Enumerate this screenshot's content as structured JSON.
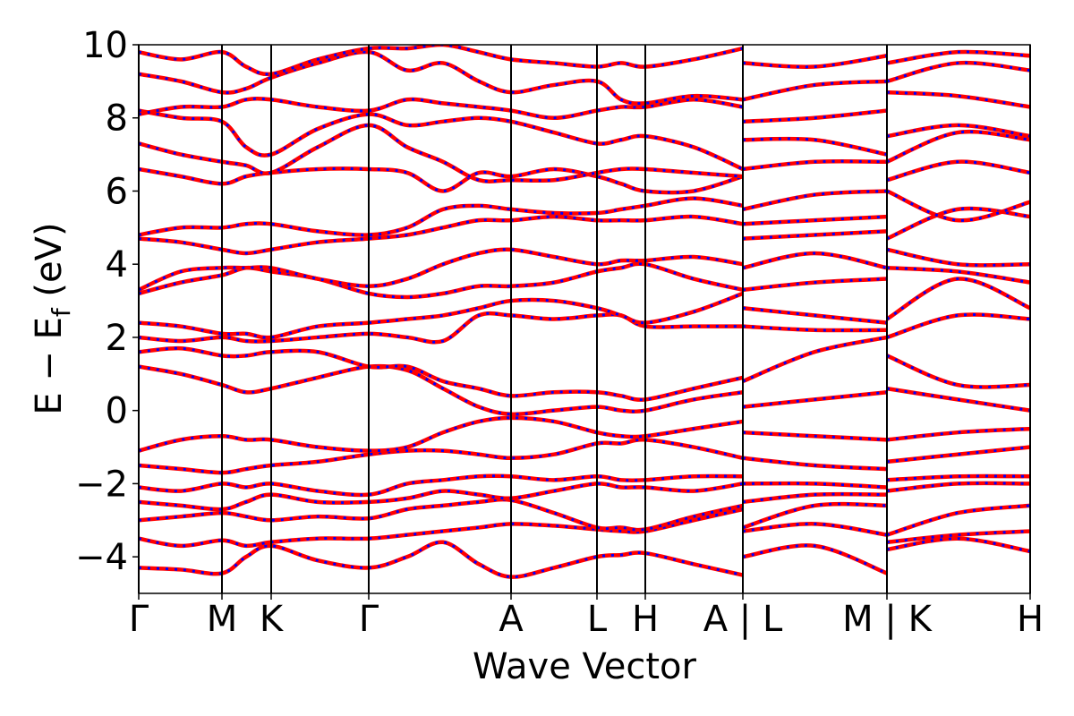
{
  "chart_data": {
    "type": "band-structure",
    "xlabel": "Wave Vector",
    "ylabel": {
      "text": "E − E",
      "subscript": "f",
      "suffix": " (eV)"
    },
    "xlim": [
      0,
      9.96
    ],
    "ylim": [
      -5,
      10
    ],
    "yticks": [
      {
        "value": -4,
        "label": "−4"
      },
      {
        "value": -2,
        "label": "−2"
      },
      0,
      2,
      4,
      6,
      8,
      10
    ],
    "xticks": [
      {
        "value": 0,
        "label": "Γ"
      },
      {
        "value": 0.93,
        "label": "M"
      },
      {
        "value": 1.48,
        "label": "K"
      },
      {
        "value": 2.57,
        "label": "Γ"
      },
      {
        "value": 4.16,
        "label": "A"
      },
      {
        "value": 5.12,
        "label": "L"
      },
      {
        "value": 5.66,
        "label": "H"
      },
      {
        "value": 6.75,
        "label": "A | L"
      },
      {
        "value": 8.36,
        "label": "M | K"
      },
      {
        "value": 9.96,
        "label": "H"
      }
    ],
    "vlines": true,
    "color": "#ff0000",
    "dash_color": "#0000ff",
    "x": [
      0,
      0.47,
      0.93,
      1.2,
      1.48,
      2.0,
      2.57,
      3.0,
      3.4,
      3.8,
      4.16,
      4.64,
      5.12,
      5.39,
      5.66,
      6.2,
      6.75,
      6.75,
      6.75,
      7.55,
      8.36,
      8.36,
      8.36,
      9.15,
      9.96
    ],
    "series": [
      {
        "values": [
          -4.3,
          -4.35,
          -4.45,
          -4.0,
          -3.7,
          -4.1,
          -4.3,
          -4.0,
          -3.6,
          -4.2,
          -4.55,
          -4.3,
          -4.0,
          -3.95,
          -3.9,
          -4.2,
          -4.5,
          null,
          -4.0,
          -3.7,
          -4.45,
          null,
          -3.8,
          -3.5,
          -3.85
        ]
      },
      {
        "values": [
          -3.5,
          -3.7,
          -3.55,
          -3.7,
          -3.6,
          -3.5,
          -3.5,
          -3.4,
          -3.3,
          -3.2,
          -3.1,
          -3.15,
          -3.25,
          -3.3,
          -3.3,
          -3.0,
          -2.7,
          null,
          -3.3,
          -3.1,
          -3.4,
          null,
          -3.6,
          -3.4,
          -3.3
        ]
      },
      {
        "values": [
          -3.0,
          -2.9,
          -2.8,
          -2.9,
          -3.0,
          -2.9,
          -2.95,
          -2.7,
          -2.6,
          -2.5,
          -2.45,
          -2.8,
          -3.2,
          -3.2,
          -3.25,
          -2.9,
          -2.6,
          null,
          -3.2,
          -2.6,
          -2.6,
          null,
          -3.4,
          -2.8,
          -2.6
        ]
      },
      {
        "values": [
          -2.5,
          -2.6,
          -2.7,
          -2.5,
          -2.3,
          -2.5,
          -2.5,
          -2.4,
          -2.2,
          -2.3,
          -2.4,
          -2.2,
          -2.0,
          -2.1,
          -2.1,
          -2.2,
          -2.0,
          null,
          -2.5,
          -2.3,
          -2.3,
          null,
          -2.2,
          -2.0,
          -2.0
        ]
      },
      {
        "values": [
          -2.1,
          -2.2,
          -2.0,
          -2.1,
          -2.0,
          -2.2,
          -2.3,
          -2.0,
          -1.9,
          -1.8,
          -1.8,
          -1.9,
          -1.8,
          -1.9,
          -1.9,
          -1.8,
          -1.8,
          null,
          -2.0,
          -2.0,
          -2.1,
          null,
          -1.9,
          -1.8,
          -1.8
        ]
      },
      {
        "values": [
          -1.5,
          -1.6,
          -1.7,
          -1.6,
          -1.5,
          -1.4,
          -1.2,
          -1.1,
          -1.1,
          -1.2,
          -1.3,
          -1.2,
          -0.9,
          -0.9,
          -0.8,
          -1.0,
          -1.3,
          null,
          -1.3,
          -1.5,
          -1.6,
          null,
          -1.4,
          -1.2,
          -1.0
        ]
      },
      {
        "values": [
          -1.1,
          -0.8,
          -0.7,
          -0.8,
          -0.8,
          -1.0,
          -1.1,
          -1.0,
          -0.6,
          -0.3,
          -0.2,
          -0.3,
          -0.6,
          -0.7,
          -0.7,
          -0.5,
          -0.3,
          null,
          -0.6,
          -0.7,
          -0.8,
          null,
          -0.8,
          -0.6,
          -0.5
        ]
      },
      {
        "values": [
          1.2,
          1.0,
          0.7,
          0.5,
          0.6,
          0.9,
          1.2,
          1.1,
          0.6,
          0.1,
          -0.1,
          0.0,
          0.1,
          0.0,
          0.0,
          0.3,
          0.5,
          null,
          0.1,
          0.3,
          0.5,
          null,
          0.6,
          0.3,
          0.0
        ]
      },
      {
        "values": [
          1.6,
          1.7,
          1.5,
          1.5,
          1.6,
          1.6,
          1.2,
          1.2,
          0.8,
          0.6,
          0.4,
          0.5,
          0.5,
          0.4,
          0.3,
          0.6,
          0.9,
          null,
          0.8,
          1.6,
          2.0,
          null,
          1.5,
          0.7,
          0.7
        ]
      },
      {
        "values": [
          2.0,
          1.9,
          2.0,
          1.9,
          1.9,
          2.0,
          2.1,
          2.0,
          1.9,
          2.6,
          2.6,
          2.5,
          2.6,
          2.6,
          2.3,
          2.3,
          2.3,
          null,
          2.3,
          2.2,
          2.2,
          null,
          2.0,
          2.6,
          2.5
        ]
      },
      {
        "values": [
          2.4,
          2.3,
          2.1,
          2.1,
          2.0,
          2.3,
          2.4,
          2.5,
          2.6,
          2.8,
          3.0,
          3.0,
          2.8,
          2.6,
          2.4,
          2.7,
          3.2,
          null,
          2.8,
          2.6,
          2.4,
          null,
          2.5,
          3.6,
          2.8
        ]
      },
      {
        "values": [
          3.2,
          3.5,
          3.7,
          3.9,
          3.8,
          3.6,
          3.2,
          3.1,
          3.2,
          3.4,
          3.4,
          3.5,
          3.8,
          3.9,
          4.0,
          3.6,
          3.3,
          null,
          3.3,
          3.5,
          3.6,
          null,
          3.9,
          3.8,
          3.5
        ]
      },
      {
        "values": [
          3.3,
          3.8,
          3.9,
          3.9,
          3.9,
          3.6,
          3.4,
          3.6,
          4.0,
          4.3,
          4.4,
          4.2,
          4.0,
          4.1,
          4.1,
          4.2,
          4.0,
          null,
          3.9,
          4.3,
          3.9,
          null,
          4.4,
          4.0,
          4.0
        ]
      },
      {
        "values": [
          4.7,
          4.6,
          4.4,
          4.3,
          4.4,
          4.6,
          4.7,
          4.8,
          5.0,
          5.2,
          5.2,
          5.3,
          5.2,
          5.2,
          5.2,
          5.3,
          5.1,
          null,
          4.7,
          4.8,
          4.9,
          null,
          4.7,
          5.5,
          5.3
        ]
      },
      {
        "values": [
          4.8,
          5.0,
          5.0,
          5.1,
          5.1,
          4.9,
          4.8,
          5.0,
          5.5,
          5.6,
          5.5,
          5.4,
          5.4,
          5.5,
          5.6,
          5.8,
          5.6,
          null,
          5.1,
          5.2,
          5.3,
          null,
          6.0,
          5.2,
          5.7
        ]
      },
      {
        "values": [
          6.6,
          6.4,
          6.2,
          6.4,
          6.5,
          6.6,
          6.6,
          6.5,
          6.0,
          6.5,
          6.4,
          6.6,
          6.4,
          6.2,
          6.0,
          6.0,
          6.4,
          null,
          5.5,
          5.9,
          6.0,
          null,
          6.3,
          6.8,
          6.5
        ]
      },
      {
        "values": [
          7.3,
          7.0,
          6.8,
          6.7,
          6.5,
          7.2,
          7.8,
          7.2,
          6.8,
          6.3,
          6.3,
          6.3,
          6.5,
          6.6,
          6.6,
          6.5,
          6.4,
          null,
          6.6,
          6.8,
          6.8,
          null,
          6.8,
          7.6,
          7.4
        ]
      },
      {
        "values": [
          8.2,
          8.0,
          7.9,
          7.2,
          7.0,
          7.7,
          8.1,
          7.8,
          7.9,
          8.0,
          7.9,
          7.6,
          7.3,
          7.4,
          7.5,
          7.2,
          6.6,
          null,
          7.4,
          7.4,
          7.0,
          null,
          7.5,
          7.8,
          7.5
        ]
      },
      {
        "values": [
          8.1,
          8.3,
          8.3,
          8.5,
          8.5,
          8.3,
          8.2,
          8.5,
          8.4,
          8.3,
          8.2,
          8.0,
          8.2,
          8.3,
          8.3,
          8.5,
          8.3,
          null,
          7.9,
          8.0,
          8.2,
          null,
          8.7,
          8.6,
          8.3
        ]
      },
      {
        "values": [
          9.2,
          9.0,
          8.7,
          8.8,
          9.1,
          9.5,
          9.8,
          9.3,
          9.5,
          9.0,
          8.7,
          8.9,
          9.0,
          8.5,
          8.4,
          8.6,
          8.5,
          null,
          8.5,
          8.9,
          9.0,
          null,
          9.0,
          9.5,
          9.3
        ]
      },
      {
        "values": [
          9.8,
          9.6,
          9.8,
          9.4,
          9.2,
          9.6,
          9.9,
          9.9,
          10.0,
          9.8,
          9.6,
          9.5,
          9.4,
          9.5,
          9.4,
          9.6,
          9.9,
          null,
          9.5,
          9.4,
          9.7,
          null,
          9.5,
          9.8,
          9.7
        ]
      }
    ]
  }
}
